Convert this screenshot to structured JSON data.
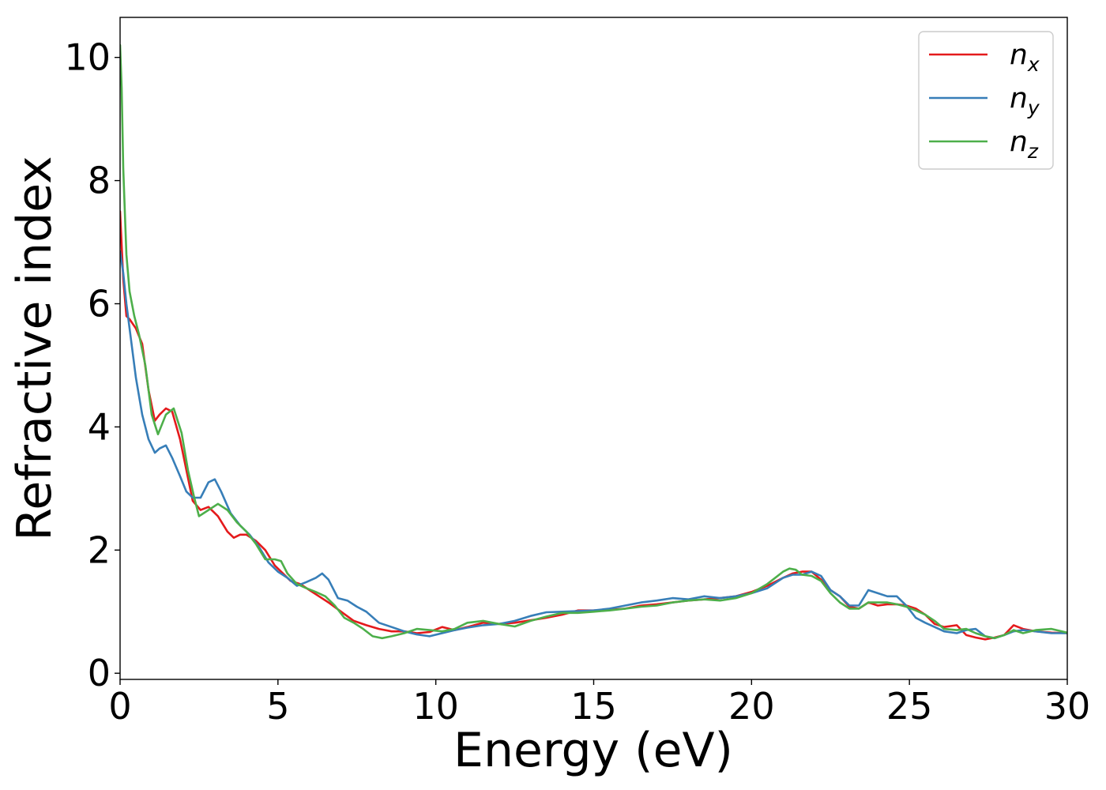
{
  "chart_data": {
    "type": "line",
    "title": "",
    "xlabel": "Energy (eV)",
    "ylabel": "Refractive index",
    "xlim": [
      0,
      30
    ],
    "ylim": [
      -0.1,
      10.65
    ],
    "xticks": [
      0,
      5,
      10,
      15,
      20,
      25,
      30
    ],
    "yticks": [
      0,
      2,
      4,
      6,
      8,
      10
    ],
    "xtick_labels": [
      "0",
      "5",
      "10",
      "15",
      "20",
      "25",
      "30"
    ],
    "ytick_labels": [
      "0",
      "2",
      "4",
      "6",
      "8",
      "10"
    ],
    "grid": false,
    "legend_position": "top-right",
    "series": [
      {
        "name": "n_x",
        "legend_base": "n",
        "legend_sub": "x",
        "color": "#e41a1c",
        "x": [
          0,
          0.1,
          0.2,
          0.3,
          0.5,
          0.7,
          0.9,
          1.1,
          1.25,
          1.45,
          1.65,
          1.9,
          2.1,
          2.3,
          2.55,
          2.8,
          3.1,
          3.4,
          3.6,
          3.8,
          4.0,
          4.3,
          4.6,
          4.9,
          5.1,
          5.4,
          5.7,
          6.0,
          6.3,
          6.6,
          7.0,
          7.4,
          7.8,
          8.2,
          8.6,
          9.0,
          9.4,
          9.8,
          10.2,
          10.6,
          11.0,
          11.5,
          12.0,
          12.5,
          13.0,
          13.5,
          14.0,
          14.5,
          15.0,
          15.5,
          16.0,
          16.5,
          17.0,
          17.5,
          18.0,
          18.5,
          19.0,
          19.5,
          20.0,
          20.5,
          21.0,
          21.3,
          21.6,
          21.9,
          22.2,
          22.5,
          22.8,
          23.1,
          23.4,
          23.7,
          24.0,
          24.3,
          24.6,
          24.9,
          25.2,
          25.5,
          25.8,
          26.1,
          26.5,
          26.8,
          27.1,
          27.4,
          27.7,
          28.0,
          28.3,
          28.6,
          29.0,
          29.5,
          30.0
        ],
        "y": [
          7.5,
          6.4,
          5.8,
          5.75,
          5.6,
          5.35,
          4.6,
          4.1,
          4.2,
          4.3,
          4.25,
          3.8,
          3.3,
          2.8,
          2.65,
          2.7,
          2.55,
          2.3,
          2.2,
          2.25,
          2.25,
          2.15,
          2.0,
          1.75,
          1.65,
          1.5,
          1.45,
          1.35,
          1.25,
          1.15,
          1.0,
          0.85,
          0.78,
          0.72,
          0.68,
          0.68,
          0.65,
          0.67,
          0.75,
          0.7,
          0.75,
          0.82,
          0.8,
          0.82,
          0.86,
          0.9,
          0.95,
          1.02,
          1.02,
          1.03,
          1.05,
          1.1,
          1.12,
          1.15,
          1.18,
          1.2,
          1.22,
          1.25,
          1.32,
          1.42,
          1.55,
          1.62,
          1.65,
          1.65,
          1.52,
          1.35,
          1.25,
          1.08,
          1.05,
          1.15,
          1.1,
          1.12,
          1.12,
          1.1,
          1.05,
          0.95,
          0.8,
          0.75,
          0.78,
          0.62,
          0.58,
          0.55,
          0.58,
          0.62,
          0.78,
          0.72,
          0.68,
          0.66,
          0.65
        ]
      },
      {
        "name": "n_y",
        "legend_base": "n",
        "legend_sub": "y",
        "color": "#377eb8",
        "x": [
          0,
          0.1,
          0.2,
          0.3,
          0.5,
          0.7,
          0.9,
          1.1,
          1.25,
          1.45,
          1.65,
          1.9,
          2.1,
          2.3,
          2.55,
          2.8,
          3.0,
          3.2,
          3.5,
          3.8,
          4.1,
          4.4,
          4.7,
          5.0,
          5.3,
          5.6,
          5.9,
          6.2,
          6.4,
          6.6,
          6.9,
          7.2,
          7.5,
          7.8,
          8.2,
          8.6,
          9.0,
          9.4,
          9.8,
          10.2,
          10.6,
          11.0,
          11.5,
          12.0,
          12.5,
          13.0,
          13.5,
          14.0,
          14.5,
          15.0,
          15.5,
          16.0,
          16.5,
          17.0,
          17.5,
          18.0,
          18.5,
          19.0,
          19.5,
          20.0,
          20.5,
          21.0,
          21.3,
          21.6,
          21.9,
          22.2,
          22.5,
          22.8,
          23.1,
          23.4,
          23.7,
          24.0,
          24.3,
          24.6,
          24.9,
          25.2,
          25.5,
          25.8,
          26.1,
          26.5,
          26.8,
          27.1,
          27.4,
          27.7,
          28.0,
          28.3,
          28.6,
          29.0,
          29.5,
          30.0
        ],
        "y": [
          6.85,
          6.5,
          6.0,
          5.6,
          4.8,
          4.2,
          3.8,
          3.58,
          3.65,
          3.7,
          3.5,
          3.2,
          2.95,
          2.85,
          2.85,
          3.1,
          3.15,
          2.95,
          2.6,
          2.4,
          2.25,
          2.05,
          1.8,
          1.65,
          1.55,
          1.42,
          1.48,
          1.55,
          1.62,
          1.52,
          1.22,
          1.18,
          1.08,
          1.0,
          0.82,
          0.75,
          0.68,
          0.63,
          0.6,
          0.65,
          0.7,
          0.74,
          0.78,
          0.8,
          0.85,
          0.93,
          0.99,
          1.0,
          1.01,
          1.02,
          1.05,
          1.1,
          1.15,
          1.18,
          1.22,
          1.2,
          1.25,
          1.22,
          1.25,
          1.3,
          1.38,
          1.55,
          1.6,
          1.6,
          1.65,
          1.58,
          1.35,
          1.25,
          1.1,
          1.1,
          1.35,
          1.3,
          1.25,
          1.25,
          1.1,
          0.9,
          0.82,
          0.75,
          0.68,
          0.65,
          0.7,
          0.72,
          0.6,
          0.57,
          0.62,
          0.68,
          0.7,
          0.68,
          0.65,
          0.65
        ]
      },
      {
        "name": "n_z",
        "legend_base": "n",
        "legend_sub": "z",
        "color": "#4daf4a",
        "x": [
          0,
          0.05,
          0.1,
          0.2,
          0.3,
          0.45,
          0.6,
          0.8,
          1.0,
          1.2,
          1.45,
          1.7,
          1.95,
          2.15,
          2.35,
          2.5,
          2.8,
          3.1,
          3.4,
          3.7,
          4.0,
          4.3,
          4.6,
          4.9,
          5.1,
          5.3,
          5.6,
          5.9,
          6.2,
          6.5,
          6.8,
          7.1,
          7.4,
          7.7,
          8.0,
          8.3,
          8.6,
          9.0,
          9.4,
          9.8,
          10.2,
          10.6,
          11.0,
          11.5,
          12.0,
          12.5,
          13.0,
          13.5,
          14.0,
          14.5,
          15.0,
          15.5,
          16.0,
          16.5,
          17.0,
          17.5,
          18.0,
          18.5,
          19.0,
          19.5,
          20.0,
          20.5,
          21.0,
          21.2,
          21.4,
          21.6,
          21.9,
          22.2,
          22.5,
          22.8,
          23.1,
          23.4,
          23.7,
          24.0,
          24.3,
          24.6,
          24.9,
          25.2,
          25.5,
          25.8,
          26.1,
          26.5,
          26.8,
          27.1,
          27.4,
          27.7,
          28.0,
          28.3,
          28.6,
          29.0,
          29.5,
          30.0
        ],
        "y": [
          10.2,
          9.5,
          8.2,
          6.8,
          6.2,
          5.8,
          5.5,
          5.0,
          4.2,
          3.88,
          4.2,
          4.3,
          3.9,
          3.3,
          2.85,
          2.55,
          2.65,
          2.75,
          2.65,
          2.45,
          2.3,
          2.1,
          1.85,
          1.85,
          1.82,
          1.62,
          1.45,
          1.38,
          1.32,
          1.25,
          1.1,
          0.9,
          0.82,
          0.72,
          0.6,
          0.57,
          0.6,
          0.65,
          0.72,
          0.7,
          0.68,
          0.72,
          0.82,
          0.85,
          0.8,
          0.76,
          0.85,
          0.92,
          0.98,
          0.98,
          1.0,
          1.02,
          1.05,
          1.08,
          1.1,
          1.15,
          1.18,
          1.2,
          1.18,
          1.22,
          1.3,
          1.45,
          1.65,
          1.7,
          1.68,
          1.6,
          1.58,
          1.5,
          1.3,
          1.15,
          1.05,
          1.05,
          1.15,
          1.15,
          1.15,
          1.12,
          1.08,
          1.02,
          0.95,
          0.85,
          0.72,
          0.7,
          0.72,
          0.65,
          0.6,
          0.57,
          0.62,
          0.7,
          0.65,
          0.7,
          0.72,
          0.66
        ]
      }
    ]
  }
}
